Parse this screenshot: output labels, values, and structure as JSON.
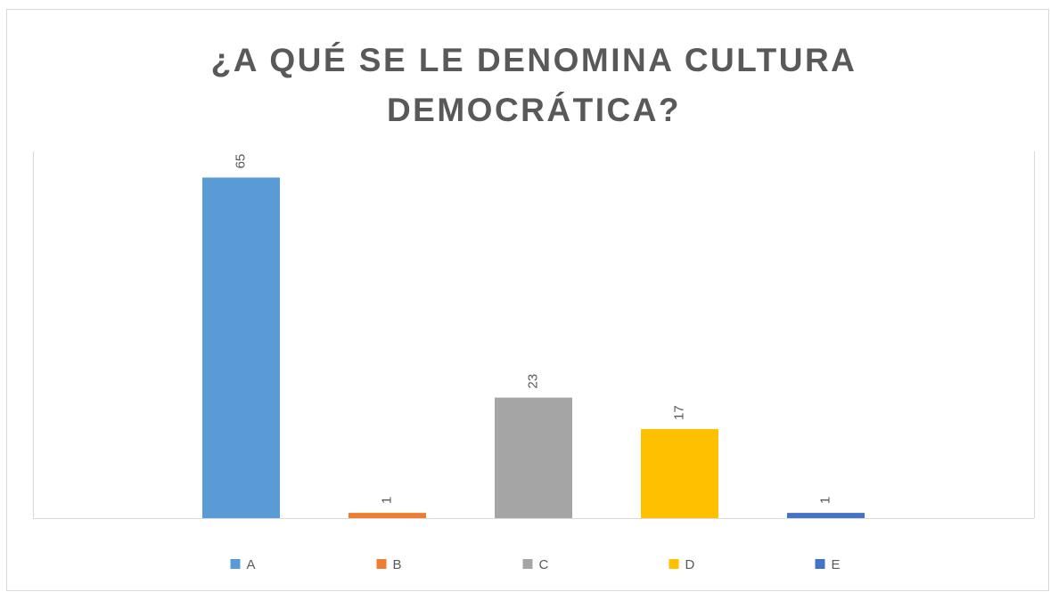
{
  "chart_data": {
    "type": "bar",
    "title": "¿A QUÉ SE LE DENOMINA CULTURA DEMOCRÁTICA?",
    "series": [
      {
        "name": "A",
        "color": "#5b9bd5",
        "values": [
          65
        ]
      },
      {
        "name": "B",
        "color": "#ed7d31",
        "values": [
          1
        ]
      },
      {
        "name": "C",
        "color": "#a5a5a5",
        "values": [
          23
        ]
      },
      {
        "name": "D",
        "color": "#ffc000",
        "values": [
          17
        ]
      },
      {
        "name": "E",
        "color": "#4472c4",
        "values": [
          1
        ]
      }
    ],
    "ylim": [
      0,
      70
    ],
    "legend": "bottom"
  }
}
